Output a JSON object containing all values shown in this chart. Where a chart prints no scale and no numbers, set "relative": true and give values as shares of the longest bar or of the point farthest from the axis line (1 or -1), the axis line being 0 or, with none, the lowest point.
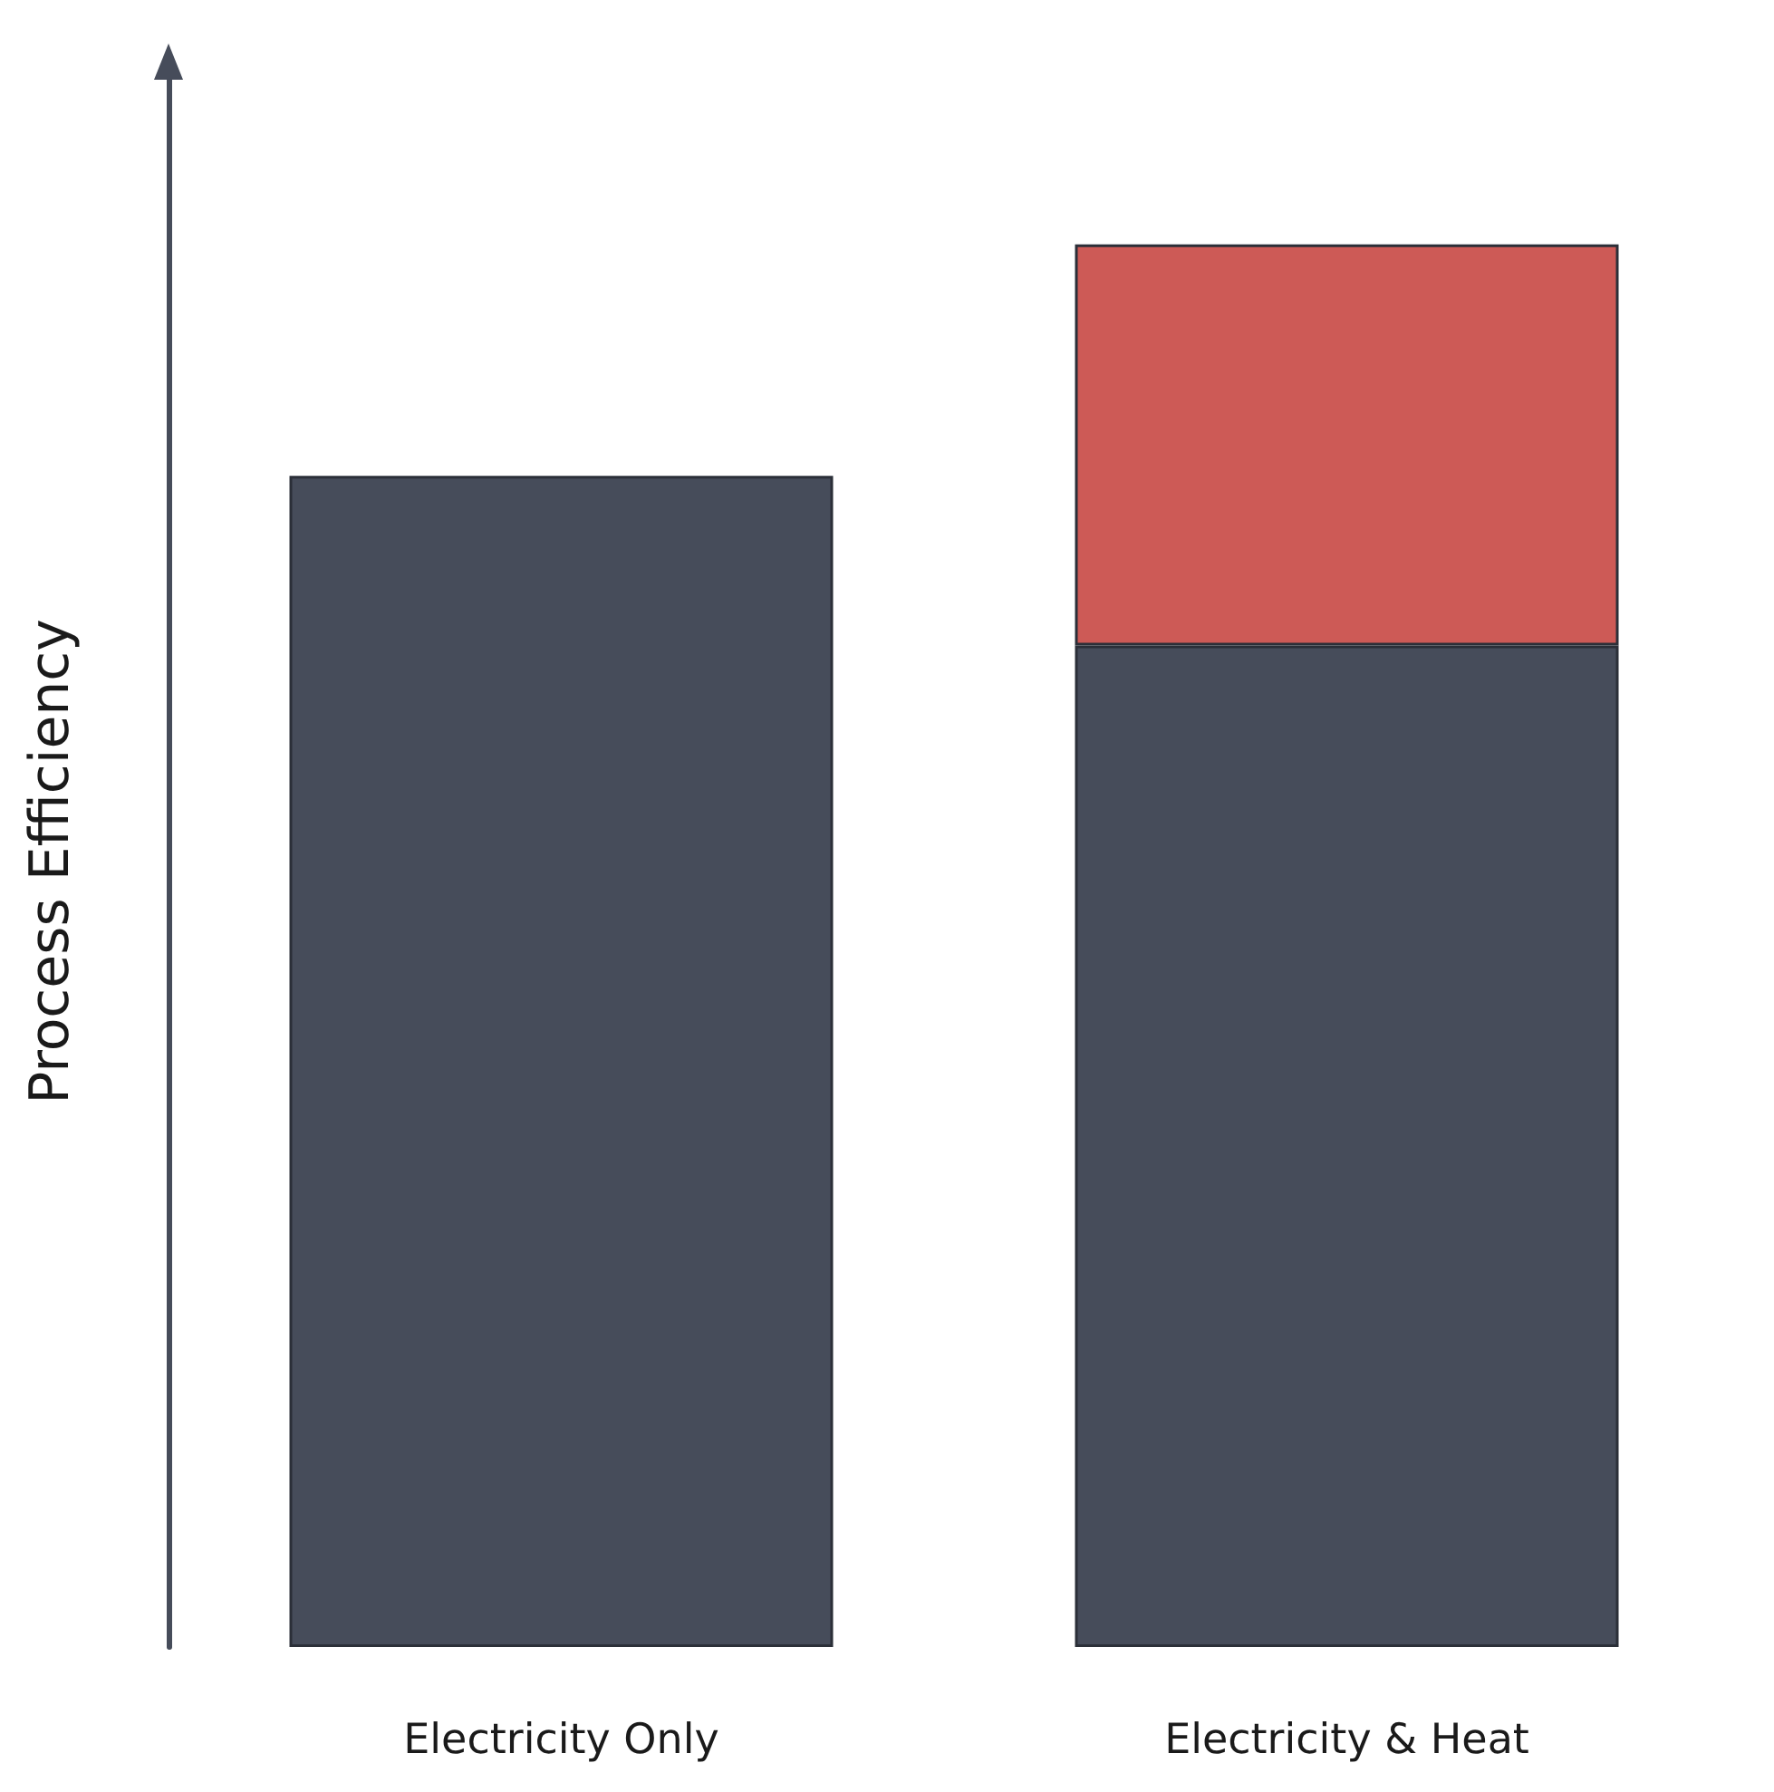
{
  "chart_data": {
    "type": "bar",
    "ylabel": "Process Efficiency",
    "categories": [
      "Electricity Only",
      "Electricity & Heat"
    ],
    "relative": true,
    "stacked": true,
    "grid": false,
    "series": [
      {
        "color": "#464c5a",
        "values": [
          0.835,
          0.714
        ]
      },
      {
        "color": "#cd5a56",
        "values": [
          null,
          0.286
        ]
      }
    ]
  }
}
